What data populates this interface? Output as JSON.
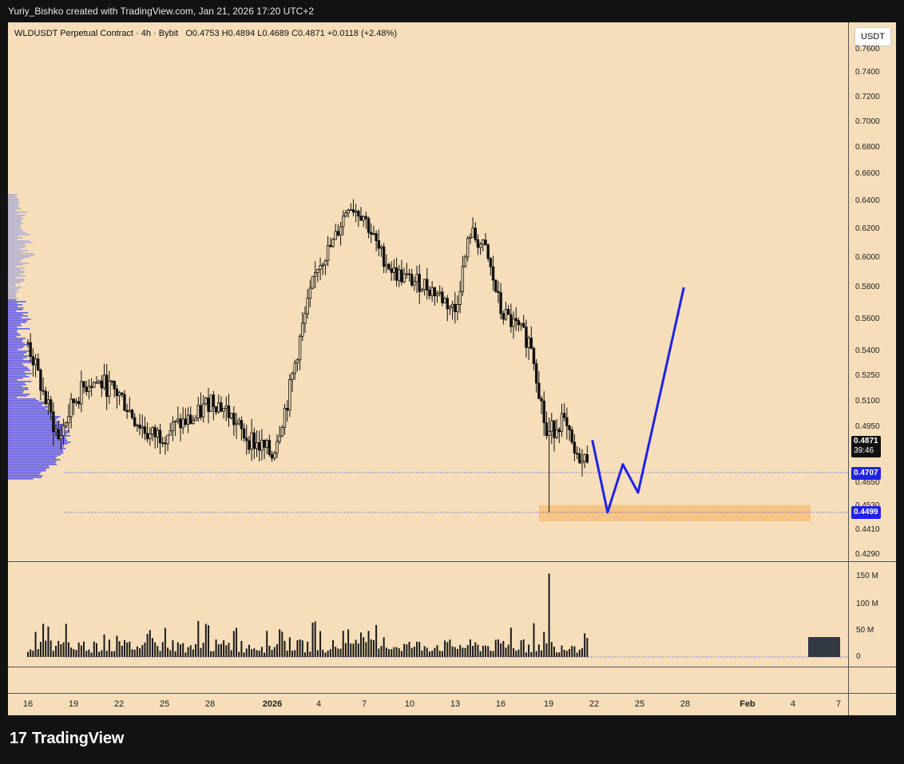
{
  "header": {
    "attribution": "Yuriy_Bishko created with TradingView.com, Jan 21, 2026 17:20 UTC+2"
  },
  "footer": {
    "brand": "TradingView",
    "logo_glyph": "17"
  },
  "chart_data": {
    "type": "candlestick",
    "symbol_line": "WLDUSDT Perpetual Contract · 4h · Bybit",
    "ohlc_line": "O0.4753  H0.4894  L0.4689  C0.4871  +0.0118 (+2.48%)",
    "currency_label": "USDT",
    "price_axis_ticks": [
      "0.7600",
      "0.7400",
      "0.7200",
      "0.7000",
      "0.6800",
      "0.6600",
      "0.6400",
      "0.6200",
      "0.6000",
      "0.5800",
      "0.5600",
      "0.5400",
      "0.5250",
      "0.5100",
      "0.4950",
      "0.4650",
      "0.4530",
      "0.4410",
      "0.4290"
    ],
    "volume_axis_ticks": [
      "150 M",
      "100 M",
      "50 M",
      "0"
    ],
    "time_axis_ticks": [
      "16",
      "19",
      "22",
      "25",
      "28",
      "2026",
      "4",
      "7",
      "10",
      "13",
      "16",
      "19",
      "22",
      "25",
      "28",
      "Feb",
      "4",
      "7"
    ],
    "current_price": {
      "value": "0.4871",
      "countdown": "39:46"
    },
    "price_labels": [
      {
        "value": "0.4707",
        "color": "#1e22e8"
      },
      {
        "value": "0.4499",
        "color": "#1e22e8"
      }
    ],
    "price_scale": {
      "ref": [
        0.495,
        0.465
      ]
    },
    "candles_anchor": [
      [
        "2025-12-15",
        0.54
      ],
      [
        "2025-12-16",
        0.545
      ],
      [
        "2025-12-17",
        0.515
      ],
      [
        "2025-12-18",
        0.488
      ],
      [
        "2025-12-19",
        0.51
      ],
      [
        "2025-12-20",
        0.522
      ],
      [
        "2025-12-21",
        0.52
      ],
      [
        "2025-12-22",
        0.514
      ],
      [
        "2025-12-23",
        0.5
      ],
      [
        "2025-12-24",
        0.49
      ],
      [
        "2025-12-25",
        0.492
      ],
      [
        "2025-12-26",
        0.497
      ],
      [
        "2025-12-27",
        0.5
      ],
      [
        "2025-12-28",
        0.512
      ],
      [
        "2025-12-29",
        0.505
      ],
      [
        "2025-12-30",
        0.492
      ],
      [
        "2025-12-31",
        0.486
      ],
      [
        "2026-01-01",
        0.48
      ],
      [
        "2026-01-02",
        0.51
      ],
      [
        "2026-01-03",
        0.555
      ],
      [
        "2026-01-04",
        0.595
      ],
      [
        "2026-01-05",
        0.61
      ],
      [
        "2026-01-06",
        0.638
      ],
      [
        "2026-01-07",
        0.63
      ],
      [
        "2026-01-08",
        0.605
      ],
      [
        "2026-01-09",
        0.59
      ],
      [
        "2026-01-10",
        0.585
      ],
      [
        "2026-01-11",
        0.582
      ],
      [
        "2026-01-12",
        0.575
      ],
      [
        "2026-01-13",
        0.565
      ],
      [
        "2026-01-14",
        0.618
      ],
      [
        "2026-01-15",
        0.605
      ],
      [
        "2026-01-16",
        0.565
      ],
      [
        "2026-01-17",
        0.555
      ],
      [
        "2026-01-18",
        0.545
      ],
      [
        "2026-01-19",
        0.49
      ],
      [
        "2026-01-20",
        0.5
      ],
      [
        "2026-01-21",
        0.476
      ],
      [
        "2026-01-21",
        0.4871
      ]
    ],
    "volume_colors": {
      "bar": "#1a1a1a"
    },
    "projection_path": [
      [
        "2026-01-22",
        0.488
      ],
      [
        "2026-01-23",
        0.4499
      ],
      [
        "2026-01-24",
        0.475
      ],
      [
        "2026-01-25",
        0.46
      ],
      [
        "2026-01-28",
        0.58
      ]
    ],
    "support_zone": {
      "from": 0.447,
      "to": 0.452,
      "color": "#f6c27f"
    },
    "colors": {
      "background": "#f5deb9",
      "candle": "#111111",
      "projection": "#1e22e8",
      "profile_up": "#4a4af0",
      "profile_down": "#a7a8d6"
    }
  }
}
